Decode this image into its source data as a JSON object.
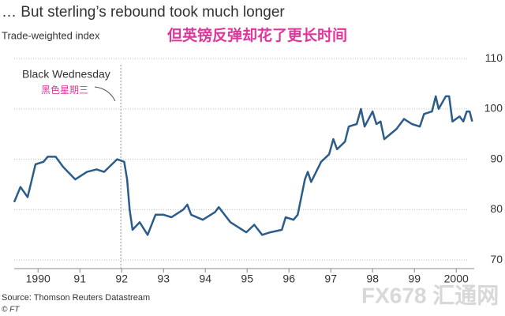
{
  "chart_data": {
    "type": "line",
    "title": "… But sterling’s rebound took much longer",
    "subtitle": "Trade-weighted index",
    "subtitle_zh": "但英镑反弹却花了更长时间",
    "annotation": {
      "text": "Black Wednesday",
      "text_zh": "黑色星期三",
      "x": 1991.98
    },
    "source": "Source: Thomson Reuters Datastream",
    "credit": "© FT",
    "watermark": "FX678 汇通网",
    "x": [
      1989.43,
      1989.58,
      1989.75,
      1989.94,
      1990.13,
      1990.23,
      1990.42,
      1990.6,
      1990.89,
      1991.17,
      1991.4,
      1991.58,
      1991.89,
      1992.06,
      1992.13,
      1992.19,
      1992.26,
      1992.43,
      1992.62,
      1992.81,
      1993.0,
      1993.19,
      1993.47,
      1993.57,
      1993.66,
      1993.94,
      1994.23,
      1994.32,
      1994.6,
      1994.98,
      1995.17,
      1995.36,
      1995.55,
      1995.83,
      1995.92,
      1996.11,
      1996.21,
      1996.38,
      1996.45,
      1996.53,
      1996.77,
      1996.96,
      1997.06,
      1997.15,
      1997.34,
      1997.43,
      1997.62,
      1997.72,
      1997.81,
      1998.0,
      1998.09,
      1998.19,
      1998.28,
      1998.57,
      1998.75,
      1998.94,
      1999.13,
      1999.23,
      1999.42,
      1999.51,
      1999.58,
      1999.75,
      1999.83,
      1999.91,
      2000.08,
      2000.17,
      2000.25,
      2000.32,
      2000.38
    ],
    "series": [
      {
        "color": "#2b5c8a",
        "values": [
          81.5,
          84.5,
          82.5,
          89,
          89.5,
          90.5,
          90.5,
          88.5,
          86,
          87.5,
          88,
          87.5,
          90,
          89.5,
          86,
          80,
          76,
          77.5,
          75,
          79,
          79,
          78.5,
          80,
          81,
          79,
          78,
          79.5,
          80.5,
          77.5,
          75.5,
          77,
          75,
          75.5,
          76,
          78.5,
          78,
          79,
          86,
          87.5,
          85.5,
          89.5,
          91,
          94,
          92,
          93.5,
          96.5,
          97,
          100,
          96.5,
          99.5,
          97,
          97.5,
          94,
          96,
          98,
          97,
          96.5,
          99,
          99.5,
          102.5,
          100,
          102.5,
          102.5,
          97.5,
          98.5,
          97.5,
          99.5,
          99.5,
          97.5
        ]
      }
    ],
    "xlim": [
      1989.43,
      2000.43
    ],
    "xticks": [
      1990,
      {
        "value": 1991,
        "label": "91"
      },
      {
        "value": 1992,
        "label": "92"
      },
      {
        "value": 1993,
        "label": "93"
      },
      {
        "value": 1994,
        "label": "94"
      },
      {
        "value": 1995,
        "label": "95"
      },
      {
        "value": 1996,
        "label": "96"
      },
      {
        "value": 1997,
        "label": "97"
      },
      {
        "value": 1998,
        "label": "98"
      },
      {
        "value": 1999,
        "label": "99"
      },
      2000
    ],
    "ylim": [
      68.3,
      111.9
    ],
    "yticks": [
      70,
      80,
      90,
      100,
      110
    ],
    "grid": true
  }
}
